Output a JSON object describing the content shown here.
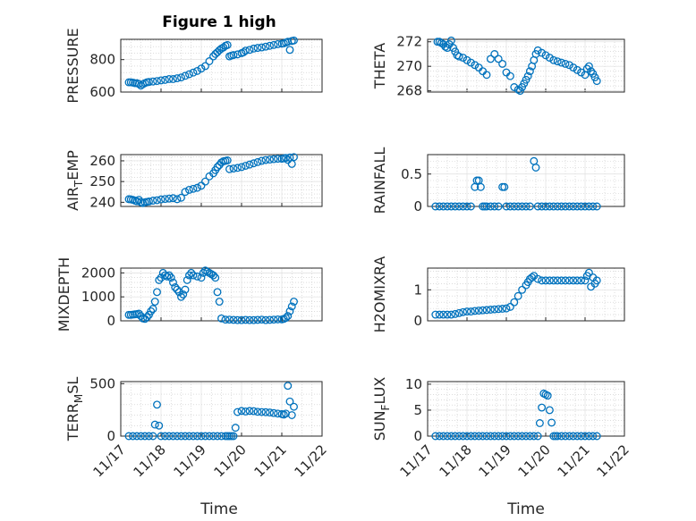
{
  "figure": {
    "title": "Figure 1 high",
    "accent": "#0072bd"
  },
  "chart_data": [
    {
      "type": "scatter",
      "name": "pressure",
      "title": "Figure 1 high",
      "ylabel": "PRESSURE",
      "xlabel": "",
      "xlim": [
        17,
        22
      ],
      "ylim": [
        600,
        925
      ],
      "yticks": [
        600,
        800
      ],
      "grid": true,
      "x": [
        17.2,
        17.25,
        17.3,
        17.35,
        17.4,
        17.45,
        17.5,
        17.55,
        17.6,
        17.65,
        17.7,
        17.8,
        17.9,
        18.0,
        18.1,
        18.2,
        18.3,
        18.4,
        18.5,
        18.6,
        18.7,
        18.8,
        18.9,
        19.0,
        19.1,
        19.2,
        19.3,
        19.35,
        19.4,
        19.45,
        19.5,
        19.55,
        19.6,
        19.65,
        19.7,
        19.75,
        19.8,
        19.9,
        20.0,
        20.05,
        20.1,
        20.2,
        20.3,
        20.4,
        20.5,
        20.6,
        20.7,
        20.8,
        20.9,
        21.0,
        21.05,
        21.1,
        21.15,
        21.2,
        21.25,
        21.3
      ],
      "y": [
        660,
        660,
        658,
        655,
        655,
        650,
        640,
        648,
        655,
        660,
        662,
        665,
        668,
        672,
        675,
        680,
        680,
        685,
        690,
        700,
        710,
        720,
        730,
        745,
        760,
        790,
        820,
        835,
        845,
        858,
        868,
        875,
        885,
        890,
        820,
        825,
        828,
        832,
        840,
        845,
        855,
        860,
        868,
        872,
        875,
        880,
        885,
        890,
        895,
        898,
        900,
        905,
        910,
        860,
        915,
        918
      ]
    },
    {
      "type": "scatter",
      "name": "theta",
      "ylabel": "THETA",
      "xlabel": "",
      "xlim": [
        17,
        22
      ],
      "ylim": [
        267.9,
        272.2
      ],
      "yticks": [
        268,
        270,
        272
      ],
      "grid": true,
      "x": [
        17.25,
        17.3,
        17.35,
        17.4,
        17.45,
        17.5,
        17.55,
        17.6,
        17.65,
        17.7,
        17.75,
        17.8,
        17.9,
        18.0,
        18.1,
        18.2,
        18.3,
        18.4,
        18.5,
        18.6,
        18.7,
        18.8,
        18.9,
        19.0,
        19.1,
        19.2,
        19.3,
        19.35,
        19.4,
        19.45,
        19.5,
        19.55,
        19.6,
        19.65,
        19.7,
        19.75,
        19.8,
        19.9,
        20.0,
        20.1,
        20.2,
        20.3,
        20.4,
        20.5,
        20.6,
        20.7,
        20.8,
        20.9,
        21.0,
        21.05,
        21.1,
        21.15,
        21.2,
        21.25,
        21.3
      ],
      "y": [
        272.0,
        272.0,
        271.9,
        271.8,
        271.6,
        271.5,
        271.8,
        272.1,
        271.5,
        271.2,
        270.9,
        270.8,
        270.7,
        270.5,
        270.3,
        270.1,
        269.9,
        269.6,
        269.3,
        270.6,
        271.0,
        270.6,
        270.2,
        269.5,
        269.2,
        268.3,
        268.1,
        268.0,
        268.3,
        268.6,
        268.9,
        269.2,
        269.6,
        270.0,
        270.5,
        271.0,
        271.3,
        271.1,
        270.9,
        270.7,
        270.5,
        270.4,
        270.3,
        270.2,
        270.1,
        269.9,
        269.7,
        269.5,
        269.3,
        269.8,
        270.0,
        269.6,
        269.4,
        269.1,
        268.8
      ]
    },
    {
      "type": "scatter",
      "name": "air_temp",
      "ylabel": "AIR_TEMP",
      "xlabel": "",
      "xlim": [
        17,
        22
      ],
      "ylim": [
        238,
        263
      ],
      "yticks": [
        240,
        250,
        260
      ],
      "grid": true,
      "x": [
        17.2,
        17.25,
        17.3,
        17.35,
        17.4,
        17.45,
        17.5,
        17.55,
        17.6,
        17.65,
        17.7,
        17.8,
        17.9,
        18.0,
        18.1,
        18.2,
        18.3,
        18.4,
        18.5,
        18.6,
        18.7,
        18.8,
        18.9,
        19.0,
        19.1,
        19.2,
        19.3,
        19.35,
        19.4,
        19.45,
        19.5,
        19.55,
        19.6,
        19.65,
        19.7,
        19.8,
        19.9,
        20.0,
        20.1,
        20.2,
        20.3,
        20.4,
        20.5,
        20.6,
        20.7,
        20.8,
        20.9,
        21.0,
        21.05,
        21.1,
        21.15,
        21.2,
        21.25,
        21.3
      ],
      "y": [
        241.5,
        241.4,
        241.2,
        240.8,
        240.5,
        241.2,
        240.0,
        239.6,
        240.0,
        240.2,
        240.4,
        240.8,
        241.0,
        241.4,
        241.6,
        241.8,
        242.0,
        241.5,
        242.2,
        245.0,
        246.0,
        246.5,
        247.0,
        248.0,
        250.0,
        252.5,
        254.0,
        255.5,
        257.0,
        258.0,
        259.2,
        259.8,
        260.0,
        260.2,
        256.0,
        256.3,
        256.6,
        257.0,
        257.6,
        258.2,
        258.8,
        259.4,
        260.0,
        260.4,
        260.6,
        260.8,
        261.0,
        261.0,
        261.2,
        261.4,
        260.5,
        261.6,
        258.5,
        261.8
      ]
    },
    {
      "type": "scatter",
      "name": "rainfall",
      "ylabel": "RAINFALL",
      "xlabel": "",
      "xlim": [
        17,
        22
      ],
      "ylim": [
        0,
        0.8
      ],
      "yticks": [
        0,
        0.5
      ],
      "grid": true,
      "x": [
        17.2,
        17.3,
        17.4,
        17.5,
        17.6,
        17.7,
        17.8,
        17.9,
        18.0,
        18.1,
        18.2,
        18.25,
        18.3,
        18.35,
        18.4,
        18.45,
        18.5,
        18.6,
        18.7,
        18.8,
        18.9,
        18.95,
        19.0,
        19.1,
        19.2,
        19.3,
        19.4,
        19.5,
        19.6,
        19.7,
        19.75,
        19.8,
        19.9,
        20.0,
        20.1,
        20.2,
        20.3,
        20.4,
        20.5,
        20.6,
        20.7,
        20.8,
        20.9,
        21.0,
        21.1,
        21.2,
        21.3
      ],
      "y": [
        0,
        0,
        0,
        0,
        0,
        0,
        0,
        0,
        0,
        0,
        0.3,
        0.4,
        0.4,
        0.3,
        0,
        0,
        0,
        0,
        0,
        0,
        0.3,
        0.3,
        0,
        0,
        0,
        0,
        0,
        0,
        0,
        0.7,
        0.6,
        0,
        0,
        0,
        0,
        0,
        0,
        0,
        0,
        0,
        0,
        0,
        0,
        0,
        0,
        0,
        0
      ]
    },
    {
      "type": "scatter",
      "name": "mixdepth",
      "ylabel": "MIXDEPTH",
      "xlabel": "",
      "xlim": [
        17,
        22
      ],
      "ylim": [
        0,
        2200
      ],
      "yticks": [
        0,
        1000,
        2000
      ],
      "grid": true,
      "x": [
        17.2,
        17.25,
        17.3,
        17.35,
        17.4,
        17.45,
        17.5,
        17.55,
        17.6,
        17.65,
        17.7,
        17.75,
        17.8,
        17.85,
        17.9,
        17.95,
        18.0,
        18.05,
        18.1,
        18.15,
        18.2,
        18.25,
        18.3,
        18.35,
        18.4,
        18.45,
        18.5,
        18.55,
        18.6,
        18.65,
        18.7,
        18.75,
        18.8,
        18.9,
        19.0,
        19.05,
        19.1,
        19.15,
        19.2,
        19.25,
        19.3,
        19.35,
        19.4,
        19.45,
        19.5,
        19.6,
        19.7,
        19.8,
        19.9,
        20.0,
        20.1,
        20.2,
        20.3,
        20.4,
        20.5,
        20.6,
        20.7,
        20.8,
        20.9,
        21.0,
        21.05,
        21.1,
        21.15,
        21.2,
        21.25,
        21.3
      ],
      "y": [
        250,
        250,
        260,
        270,
        280,
        300,
        200,
        100,
        80,
        150,
        250,
        400,
        500,
        800,
        1200,
        1700,
        1800,
        2000,
        1900,
        1850,
        1900,
        1800,
        1600,
        1400,
        1300,
        1200,
        1000,
        1100,
        1300,
        1700,
        1900,
        2000,
        1900,
        1850,
        1800,
        2000,
        2100,
        2050,
        2000,
        1950,
        1900,
        1800,
        1200,
        800,
        100,
        50,
        50,
        40,
        30,
        30,
        40,
        30,
        30,
        40,
        50,
        30,
        40,
        50,
        60,
        60,
        80,
        120,
        200,
        400,
        600,
        800
      ]
    },
    {
      "type": "scatter",
      "name": "h2omixra",
      "ylabel": "H2OMIXRA",
      "xlabel": "",
      "xlim": [
        17,
        22
      ],
      "ylim": [
        0,
        1.7
      ],
      "yticks": [
        0,
        1
      ],
      "grid": true,
      "x": [
        17.2,
        17.3,
        17.4,
        17.5,
        17.6,
        17.7,
        17.8,
        17.9,
        18.0,
        18.1,
        18.2,
        18.3,
        18.4,
        18.5,
        18.6,
        18.7,
        18.8,
        18.9,
        19.0,
        19.1,
        19.2,
        19.3,
        19.4,
        19.5,
        19.55,
        19.6,
        19.65,
        19.7,
        19.8,
        19.9,
        20.0,
        20.1,
        20.2,
        20.3,
        20.4,
        20.5,
        20.6,
        20.7,
        20.8,
        20.9,
        21.0,
        21.05,
        21.1,
        21.15,
        21.2,
        21.25,
        21.3
      ],
      "y": [
        0.2,
        0.2,
        0.2,
        0.2,
        0.2,
        0.22,
        0.25,
        0.28,
        0.3,
        0.3,
        0.32,
        0.33,
        0.34,
        0.35,
        0.36,
        0.37,
        0.38,
        0.39,
        0.4,
        0.45,
        0.6,
        0.8,
        1.0,
        1.15,
        1.25,
        1.35,
        1.4,
        1.45,
        1.35,
        1.3,
        1.3,
        1.3,
        1.3,
        1.3,
        1.3,
        1.3,
        1.3,
        1.3,
        1.3,
        1.3,
        1.3,
        1.45,
        1.55,
        1.1,
        1.4,
        1.2,
        1.3
      ]
    },
    {
      "type": "scatter",
      "name": "terr_msl",
      "ylabel": "TERR_MSL",
      "xlabel": "Time",
      "xlim": [
        17,
        22
      ],
      "ylim": [
        0,
        520
      ],
      "yticks": [
        0,
        500
      ],
      "grid": true,
      "xticks": [
        "11/17",
        "11/18",
        "11/19",
        "11/20",
        "11/21",
        "11/22"
      ],
      "x": [
        17.2,
        17.3,
        17.4,
        17.5,
        17.6,
        17.7,
        17.8,
        17.85,
        17.9,
        17.95,
        18.0,
        18.1,
        18.2,
        18.3,
        18.4,
        18.5,
        18.6,
        18.7,
        18.8,
        18.9,
        19.0,
        19.1,
        19.2,
        19.3,
        19.4,
        19.5,
        19.6,
        19.65,
        19.7,
        19.75,
        19.8,
        19.85,
        19.9,
        20.0,
        20.1,
        20.2,
        20.3,
        20.4,
        20.5,
        20.6,
        20.7,
        20.8,
        20.9,
        21.0,
        21.05,
        21.1,
        21.15,
        21.2,
        21.25,
        21.3
      ],
      "y": [
        0,
        0,
        0,
        0,
        0,
        0,
        0,
        110,
        300,
        100,
        0,
        0,
        0,
        0,
        0,
        0,
        0,
        0,
        0,
        0,
        0,
        0,
        0,
        0,
        0,
        0,
        0,
        0,
        0,
        0,
        0,
        80,
        230,
        240,
        235,
        240,
        238,
        232,
        230,
        228,
        225,
        220,
        215,
        210,
        205,
        215,
        480,
        330,
        200,
        280
      ]
    },
    {
      "type": "scatter",
      "name": "sun_flux",
      "ylabel": "SUN_FLUX",
      "xlabel": "Time",
      "xlim": [
        17,
        22
      ],
      "ylim": [
        0,
        10.5
      ],
      "yticks": [
        0,
        5,
        10
      ],
      "grid": true,
      "xticks": [
        "11/17",
        "11/18",
        "11/19",
        "11/20",
        "11/21",
        "11/22"
      ],
      "x": [
        17.2,
        17.3,
        17.4,
        17.5,
        17.6,
        17.7,
        17.8,
        17.9,
        18.0,
        18.1,
        18.2,
        18.3,
        18.4,
        18.5,
        18.6,
        18.7,
        18.8,
        18.9,
        19.0,
        19.1,
        19.2,
        19.3,
        19.4,
        19.5,
        19.6,
        19.7,
        19.8,
        19.85,
        19.9,
        19.95,
        20.0,
        20.05,
        20.1,
        20.15,
        20.2,
        20.25,
        20.3,
        20.4,
        20.5,
        20.6,
        20.7,
        20.8,
        20.9,
        21.0,
        21.1,
        21.2,
        21.3
      ],
      "y": [
        0,
        0,
        0,
        0,
        0,
        0,
        0,
        0,
        0,
        0,
        0,
        0,
        0,
        0,
        0,
        0,
        0,
        0,
        0,
        0,
        0,
        0,
        0,
        0,
        0,
        0,
        0,
        2.5,
        5.5,
        8.2,
        8.0,
        7.8,
        5.0,
        2.6,
        0,
        0,
        0,
        0,
        0,
        0,
        0,
        0,
        0,
        0,
        0,
        0,
        0
      ]
    }
  ]
}
